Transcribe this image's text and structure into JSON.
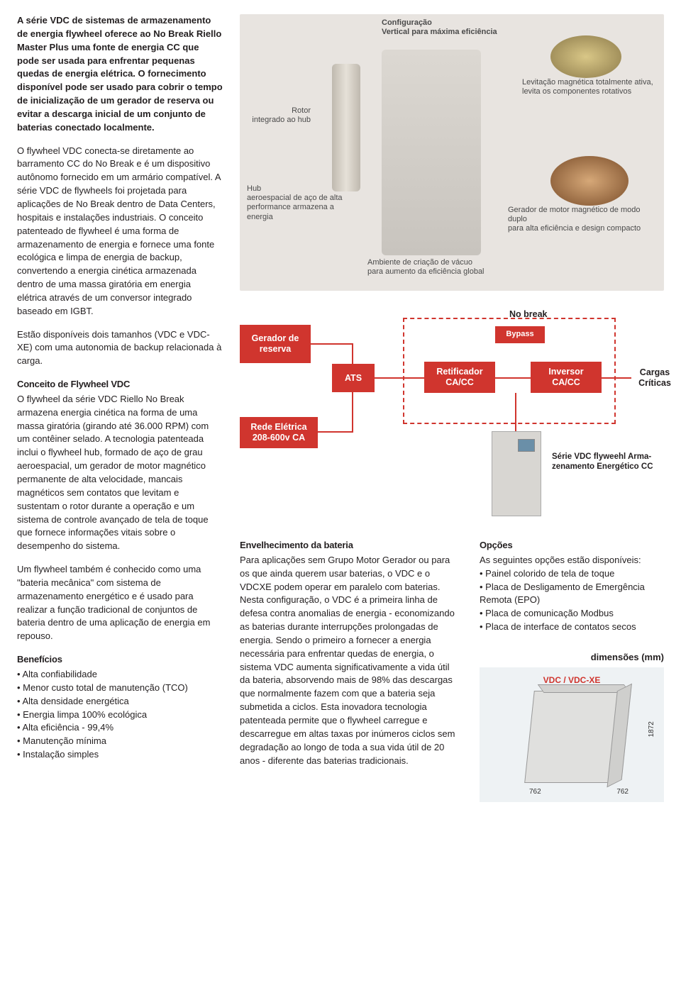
{
  "left": {
    "intro_bold": "A série VDC de sistemas de armazenamento de energia flywheel oferece ao No Break Riello Master Plus uma fonte de energia CC que pode ser usada para enfrentar pequenas quedas de energia elétrica. O fornecimento disponível pode ser usado para cobrir o tempo de inicialização de um gerador de reserva ou evitar a descarga inicial de um conjunto de baterias conectado localmente.",
    "p1": "O flywheel VDC conecta-se diretamente ao barramento CC do No Break e é um dispositivo autônomo fornecido em um armário compatível. A série VDC de flywheels foi projetada para aplicações de No Break dentro de Data Centers, hospitais e instalações industriais. O conceito patenteado de flywheel é uma forma de armazenamento de energia e fornece uma fonte ecológica e limpa de energia de backup, convertendo a energia cinética armazenada dentro de uma massa giratória em energia elétrica através de um conversor integrado baseado em IGBT.",
    "p1b": "Estão disponíveis dois tamanhos (VDC e VDC-XE) com uma autonomia de backup relacionada à carga.",
    "h_concept": "Conceito de Flywheel VDC",
    "p2": "O flywheel da série VDC Riello No Break armazena energia cinética na forma de uma massa giratória (girando até 36.000 RPM) com um contêiner selado. A tecnologia patenteada inclui o flywheel hub, formado de aço de grau aeroespacial, um gerador de motor magnético permanente de alta velocidade, mancais magnéticos sem contatos que levitam e sustentam o rotor durante a operação e um sistema de controle avançado de tela de toque que fornece informações vitais sobre o desempenho do sistema.",
    "p2b": "Um flywheel também é conhecido como uma \"bateria mecânica\" com sistema de armazenamento energético e é usado para realizar a função tradicional de conjuntos de bateria dentro de uma aplicação de energia em repouso.",
    "h_benefits": "Benefícios",
    "benefits": [
      "Alta confiabilidade",
      "Menor custo total de manutenção (TCO)",
      "Alta densidade energética",
      "Energia limpa 100% ecológica",
      "Alta eficiência - 99,4%",
      "Manutenção mínima",
      "Instalação simples"
    ]
  },
  "tech_labels": {
    "config": "Configuração\nVertical para máxima eficiência",
    "rotor": "Rotor\nintegrado ao hub",
    "hub": "Hub\naeroespacial de aço de alta\nperformance armazena a energia",
    "vacuum": "Ambiente de criação de vácuo\npara aumento da eficiência global",
    "levit": "Levitação magnética totalmente ativa,\nlevita os componentes rotativos",
    "motor": "Gerador de motor magnético de modo duplo\npara alta eficiência e design compacto"
  },
  "diagram": {
    "reserve": "Gerador de\nreserva",
    "ats": "ATS",
    "grid": "Rede Elétrica\n208-600v CA",
    "rect": "Retificador\nCA/CC",
    "inv": "Inversor\nCA/CC",
    "nobreak": "No break",
    "bypass": "Bypass",
    "loads": "Cargas\nCríticas",
    "series": "Série VDC flyweehl Arma-\nzenamento Energético CC"
  },
  "lower": {
    "h_bat": "Envelhecimento da bateria",
    "p_bat": "Para aplicações sem Grupo Motor Gerador ou para os que ainda querem usar baterias, o VDC e o VDCXE podem operar em paralelo com baterias. Nesta configuração, o VDC é a primeira linha de defesa contra anomalias de energia - economizando as baterias durante interrupções prolongadas de energia. Sendo o primeiro a fornecer a energia necessária para enfrentar quedas de energia, o sistema VDC aumenta significativamente a vida útil da bateria, absorvendo mais de 98% das descargas que normalmente fazem com que a bateria seja submetida a ciclos. Esta inovadora tecnologia patenteada permite que o flywheel carregue e descarregue em altas taxas por inúmeros ciclos sem degradação ao longo de toda a sua vida útil de 20 anos - diferente das baterias tradicionais.",
    "h_opt": "Opções",
    "p_opt_intro": "As seguintes opções estão disponíveis:",
    "options": [
      "Painel colorido de tela de toque",
      "Placa de Desligamento de Emergência Remota (EPO)",
      "Placa de comunicação Modbus",
      "Placa de interface de contatos secos"
    ],
    "h_dims": "dimensões (mm)",
    "dims_title": "VDC / VDC-XE",
    "dim_w": "762",
    "dim_d": "762",
    "dim_h": "1872"
  },
  "colors": {
    "accent": "#d0352e",
    "text": "#231f20",
    "panel_bg": "#eef2f4",
    "tech_bg": "#e8e4e0"
  }
}
